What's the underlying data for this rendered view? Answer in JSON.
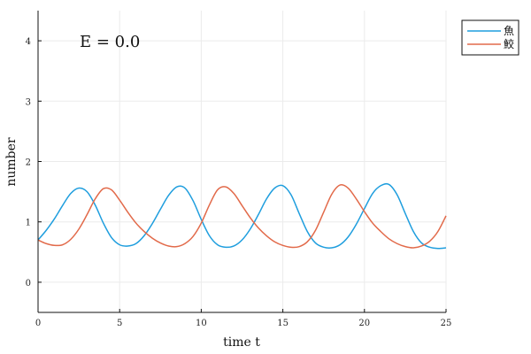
{
  "chart_data": {
    "type": "line",
    "annotation": "E = 0.0",
    "xlabel": "time t",
    "ylabel": "number",
    "xlim": [
      0,
      25
    ],
    "ylim": [
      -0.5,
      4.5
    ],
    "xticks": [
      0,
      5,
      10,
      15,
      20,
      25
    ],
    "yticks": [
      0,
      1,
      2,
      3,
      4
    ],
    "grid": true,
    "legend_position": "top-right",
    "x": [
      0,
      0.5,
      1,
      1.5,
      2,
      2.5,
      3,
      3.5,
      4,
      4.5,
      5,
      5.5,
      6,
      6.5,
      7,
      7.5,
      8,
      8.5,
      9,
      9.5,
      10,
      10.5,
      11,
      11.5,
      12,
      12.5,
      13,
      13.5,
      14,
      14.5,
      15,
      15.5,
      16,
      16.5,
      17,
      17.5,
      18,
      18.5,
      19,
      19.5,
      20,
      20.5,
      21,
      21.5,
      22,
      22.5,
      23,
      23.5,
      24,
      24.5,
      25
    ],
    "series": [
      {
        "name": "魚",
        "color": "#1f9ede",
        "values": [
          0.7,
          0.86,
          1.05,
          1.27,
          1.47,
          1.56,
          1.5,
          1.28,
          0.98,
          0.74,
          0.62,
          0.6,
          0.64,
          0.77,
          0.97,
          1.21,
          1.44,
          1.58,
          1.56,
          1.35,
          1.04,
          0.77,
          0.62,
          0.58,
          0.6,
          0.7,
          0.88,
          1.12,
          1.38,
          1.56,
          1.6,
          1.45,
          1.14,
          0.84,
          0.65,
          0.58,
          0.57,
          0.62,
          0.75,
          0.96,
          1.22,
          1.47,
          1.6,
          1.62,
          1.45,
          1.14,
          0.84,
          0.65,
          0.58,
          0.56,
          0.57
        ]
      },
      {
        "name": "鮫",
        "color": "#e26a4a",
        "values": [
          0.7,
          0.64,
          0.61,
          0.62,
          0.71,
          0.88,
          1.12,
          1.38,
          1.55,
          1.53,
          1.36,
          1.16,
          0.98,
          0.84,
          0.73,
          0.65,
          0.6,
          0.59,
          0.64,
          0.76,
          0.98,
          1.28,
          1.53,
          1.58,
          1.47,
          1.27,
          1.07,
          0.9,
          0.77,
          0.67,
          0.61,
          0.58,
          0.59,
          0.67,
          0.86,
          1.16,
          1.46,
          1.61,
          1.56,
          1.38,
          1.17,
          0.98,
          0.84,
          0.72,
          0.64,
          0.59,
          0.57,
          0.6,
          0.68,
          0.84,
          1.1
        ]
      }
    ]
  }
}
